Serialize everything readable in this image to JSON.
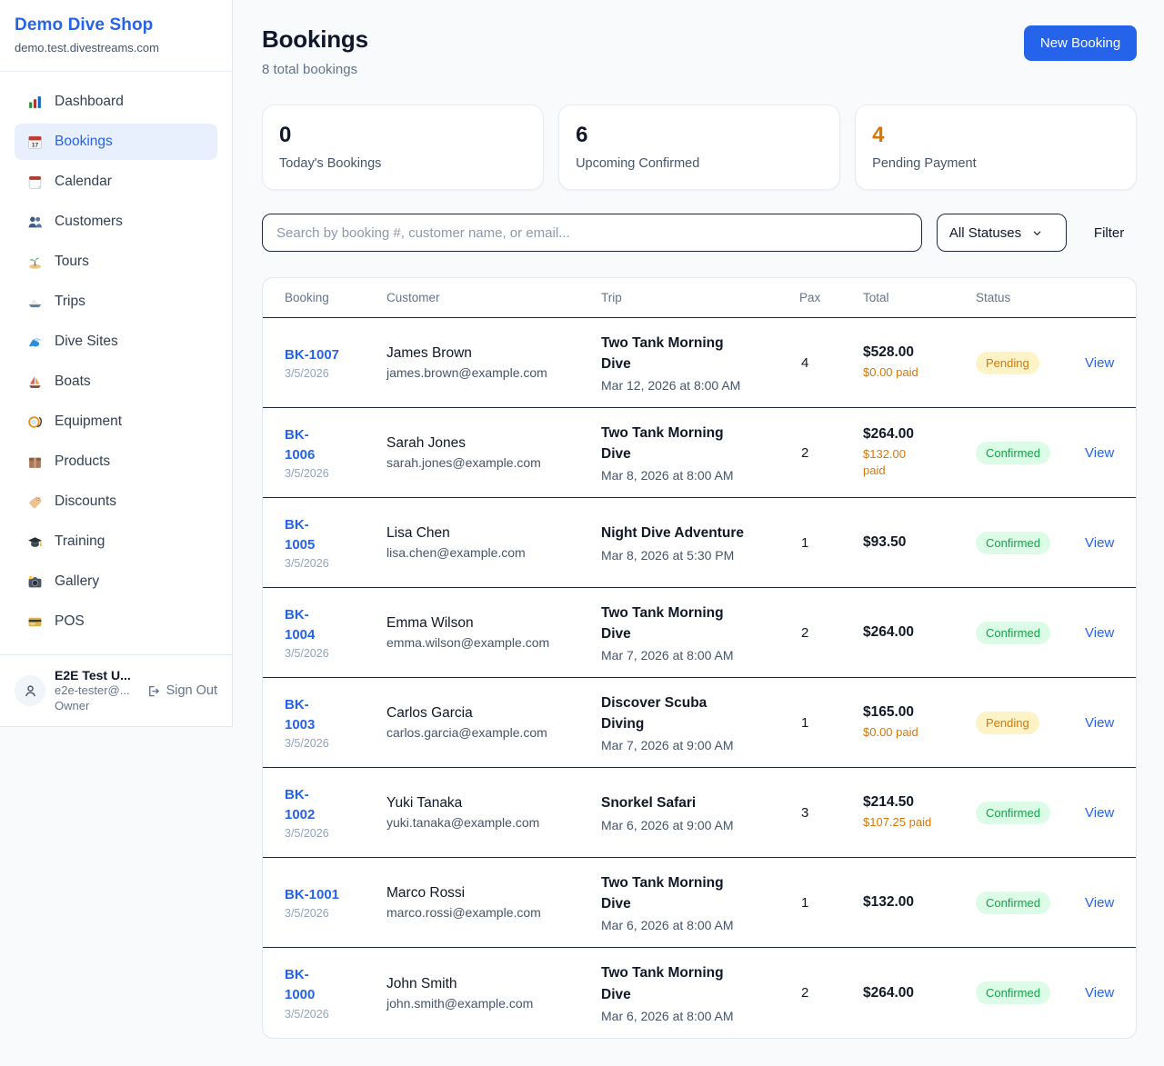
{
  "sidebar": {
    "brand": "Demo Dive Shop",
    "subdomain": "demo.test.divestreams.com",
    "items": [
      {
        "icon": "bar-chart-icon",
        "label": "Dashboard",
        "active": false
      },
      {
        "icon": "bookings-calendar-icon",
        "label": "Bookings",
        "active": true
      },
      {
        "icon": "tearoff-calendar-icon",
        "label": "Calendar",
        "active": false
      },
      {
        "icon": "customers-icon",
        "label": "Customers",
        "active": false
      },
      {
        "icon": "island-icon",
        "label": "Tours",
        "active": false
      },
      {
        "icon": "speedboat-icon",
        "label": "Trips",
        "active": false
      },
      {
        "icon": "wave-icon",
        "label": "Dive Sites",
        "active": false
      },
      {
        "icon": "sailboat-icon",
        "label": "Boats",
        "active": false
      },
      {
        "icon": "dive-mask-icon",
        "label": "Equipment",
        "active": false
      },
      {
        "icon": "package-icon",
        "label": "Products",
        "active": false
      },
      {
        "icon": "tag-icon",
        "label": "Discounts",
        "active": false
      },
      {
        "icon": "grad-cap-icon",
        "label": "Training",
        "active": false
      },
      {
        "icon": "camera-icon",
        "label": "Gallery",
        "active": false
      },
      {
        "icon": "credit-card-icon",
        "label": "POS",
        "active": false
      }
    ],
    "user": {
      "name": "E2E Test U...",
      "email": "e2e-tester@...",
      "role": "Owner",
      "sign_out_label": "Sign Out"
    }
  },
  "header": {
    "title": "Bookings",
    "subtitle": "8 total bookings",
    "new_booking_label": "New Booking"
  },
  "stats": [
    {
      "value": "0",
      "label": "Today's Bookings",
      "color": "dark"
    },
    {
      "value": "6",
      "label": "Upcoming Confirmed",
      "color": "dark"
    },
    {
      "value": "4",
      "label": "Pending Payment",
      "color": "orange"
    }
  ],
  "filters": {
    "search_placeholder": "Search by booking #, customer name, or email...",
    "search_value": "",
    "status_selected": "All Statuses",
    "filter_label": "Filter"
  },
  "table": {
    "columns": [
      "Booking",
      "Customer",
      "Trip",
      "Pax",
      "Total",
      "Status"
    ],
    "view_label": "View",
    "rows": [
      {
        "number": "BK-1007",
        "date": "3/5/2026",
        "customer": "James Brown",
        "email": "james.brown@example.com",
        "trip": "Two Tank Morning\nDive",
        "trip_datetime": "Mar 12, 2026 at 8:00 AM",
        "pax": "4",
        "total": "$528.00",
        "paid": "$0.00 paid",
        "status": "Pending"
      },
      {
        "number": "BK-\n1006",
        "date": "3/5/2026",
        "customer": "Sarah Jones",
        "email": "sarah.jones@example.com",
        "trip": "Two Tank Morning\nDive",
        "trip_datetime": "Mar 8, 2026 at 8:00 AM",
        "pax": "2",
        "total": "$264.00",
        "paid": "$132.00\npaid",
        "status": "Confirmed"
      },
      {
        "number": "BK-\n1005",
        "date": "3/5/2026",
        "customer": "Lisa Chen",
        "email": "lisa.chen@example.com",
        "trip": "Night Dive Adventure",
        "trip_datetime": "Mar 8, 2026 at 5:30 PM",
        "pax": "1",
        "total": "$93.50",
        "paid": "",
        "status": "Confirmed"
      },
      {
        "number": "BK-\n1004",
        "date": "3/5/2026",
        "customer": "Emma Wilson",
        "email": "emma.wilson@example.com",
        "trip": "Two Tank Morning\nDive",
        "trip_datetime": "Mar 7, 2026 at 8:00 AM",
        "pax": "2",
        "total": "$264.00",
        "paid": "",
        "status": "Confirmed"
      },
      {
        "number": "BK-\n1003",
        "date": "3/5/2026",
        "customer": "Carlos Garcia",
        "email": "carlos.garcia@example.com",
        "trip": "Discover Scuba\nDiving",
        "trip_datetime": "Mar 7, 2026 at 9:00 AM",
        "pax": "1",
        "total": "$165.00",
        "paid": "$0.00 paid",
        "status": "Pending"
      },
      {
        "number": "BK-\n1002",
        "date": "3/5/2026",
        "customer": "Yuki Tanaka",
        "email": "yuki.tanaka@example.com",
        "trip": "Snorkel Safari",
        "trip_datetime": "Mar 6, 2026 at 9:00 AM",
        "pax": "3",
        "total": "$214.50",
        "paid": "$107.25 paid",
        "status": "Confirmed"
      },
      {
        "number": "BK-1001",
        "date": "3/5/2026",
        "customer": "Marco Rossi",
        "email": "marco.rossi@example.com",
        "trip": "Two Tank Morning\nDive",
        "trip_datetime": "Mar 6, 2026 at 8:00 AM",
        "pax": "1",
        "total": "$132.00",
        "paid": "",
        "status": "Confirmed"
      },
      {
        "number": "BK-\n1000",
        "date": "3/5/2026",
        "customer": "John Smith",
        "email": "john.smith@example.com",
        "trip": "Two Tank Morning\nDive",
        "trip_datetime": "Mar 6, 2026 at 8:00 AM",
        "pax": "2",
        "total": "$264.00",
        "paid": "",
        "status": "Confirmed"
      }
    ]
  },
  "colors": {
    "accent": "#2563eb",
    "pending_text": "#d97706",
    "pending_bg": "#fef3c7",
    "confirmed_text": "#16a34a",
    "confirmed_bg": "#dcfce7",
    "paid_orange": "#d97706",
    "page_bg": "#f8fafc"
  }
}
